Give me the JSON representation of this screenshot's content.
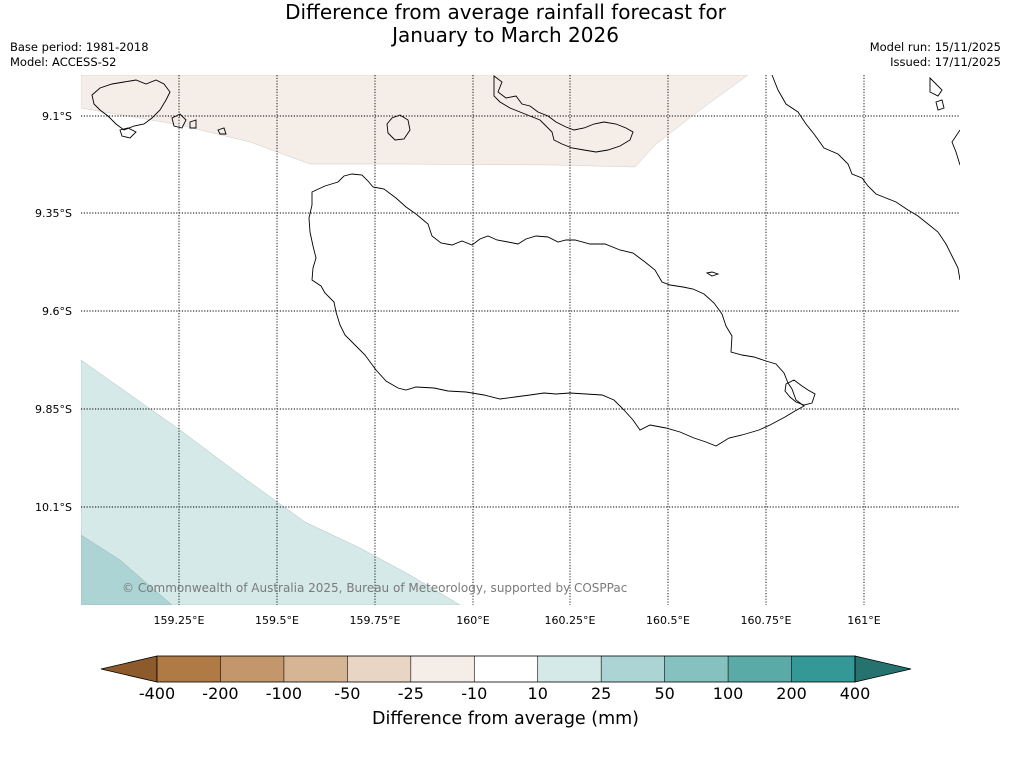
{
  "title_line1": "Difference from average rainfall forecast for",
  "title_line2": "January to March 2026",
  "meta_left": [
    "Base period: 1981-2018",
    "Model: ACCESS-S2"
  ],
  "meta_right": [
    "Model run: 15/11/2025",
    "Issued: 17/11/2025"
  ],
  "copyright": "© Commonwealth of Australia 2025, Bureau of Meteorology, supported by COSPPac",
  "lat_labels": [
    "9.1°S",
    "9.35°S",
    "9.6°S",
    "9.85°S",
    "10.1°S"
  ],
  "lon_labels": [
    "159.25°E",
    "159.5°E",
    "159.75°E",
    "160°E",
    "160.25°E",
    "160.5°E",
    "160.75°E",
    "161°E"
  ],
  "colorbar": {
    "title": "Difference from average (mm)",
    "ticks": [
      "-400",
      "-200",
      "-100",
      "-50",
      "-25",
      "-10",
      "10",
      "25",
      "50",
      "100",
      "200",
      "400"
    ],
    "colors": [
      "#8c5a2b",
      "#b07a45",
      "#c4966b",
      "#d6b595",
      "#e8d5c3",
      "#f5ede7",
      "#ffffff",
      "#d4e9e8",
      "#acd4d4",
      "#84c1bf",
      "#5aaaa8",
      "#339896",
      "#25726f"
    ]
  }
}
